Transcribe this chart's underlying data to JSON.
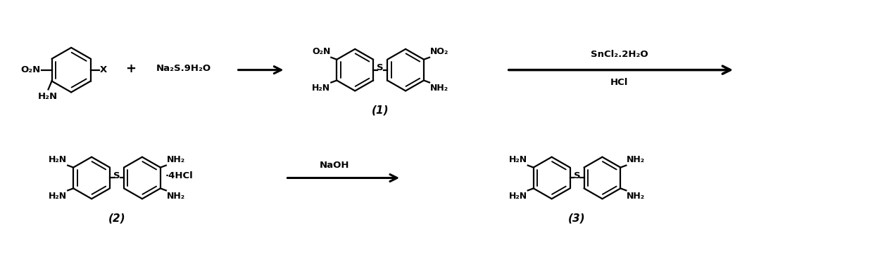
{
  "background": "#ffffff",
  "figure_width": 12.4,
  "figure_height": 3.69,
  "dpi": 100,
  "lw": 1.6,
  "structures": {
    "reactant1_no2": "O₂N",
    "reactant1_x": "X",
    "reactant1_nh2": "H₂N",
    "reagent1": "Na₂S.9H₂O",
    "product1_label": "(1)",
    "product1_no2_left": "O₂N",
    "product1_no2_right": "NO₂",
    "product1_nh2_left": "H₂N",
    "product1_nh2_right": "NH₂",
    "product1_s": "S",
    "reagent2_top": "SnCl₂.2H₂O",
    "reagent2_bot": "HCl",
    "reactant2_label": "(2)",
    "reactant2_h2n_tl": "H₂N",
    "reactant2_h2n_bl": "H₂N",
    "reactant2_nh2_tr": "NH₂",
    "reactant2_nh2_br": "NH₂",
    "reactant2_s": "S",
    "reactant2_4hcl": "·4HCl",
    "reagent3": "NaOH",
    "product3_label": "(3)",
    "product3_h2n_tl": "H₂N",
    "product3_h2n_bl": "H₂N",
    "product3_nh2_tr": "NH₂",
    "product3_nh2_br": "NH₂",
    "product3_s": "S",
    "plus": "+"
  }
}
